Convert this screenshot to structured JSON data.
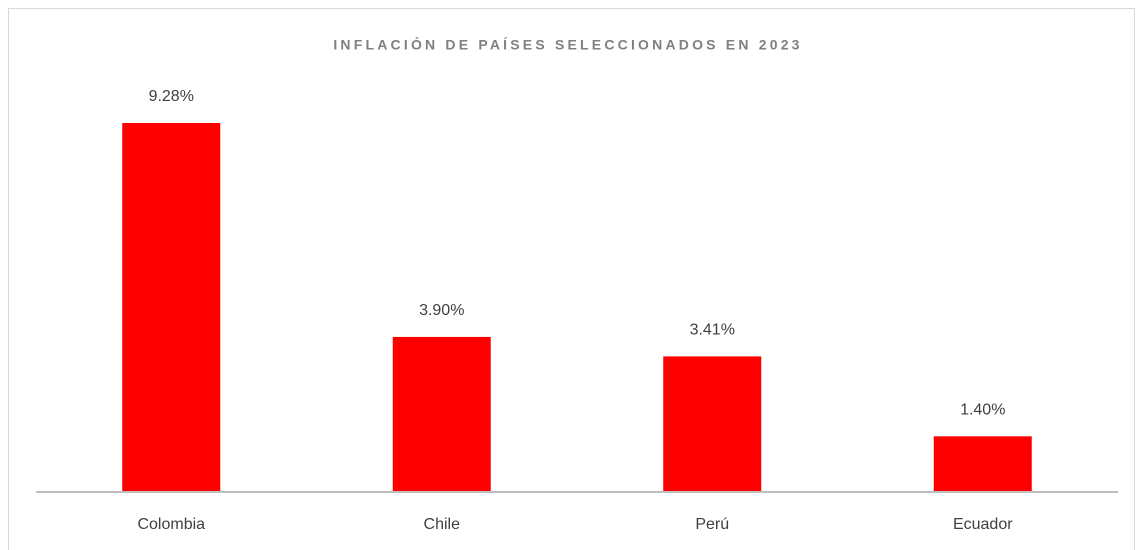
{
  "chart_data": {
    "type": "bar",
    "title": "INFLACIÓN DE PAÍSES SELECCIONADOS EN 2023",
    "categories": [
      "Colombia",
      "Chile",
      "Perú",
      "Ecuador"
    ],
    "values": [
      9.28,
      3.9,
      3.41,
      1.4
    ],
    "value_labels": [
      "9.28%",
      "3.90%",
      "3.41%",
      "1.40%"
    ],
    "color": "#ff0000"
  }
}
